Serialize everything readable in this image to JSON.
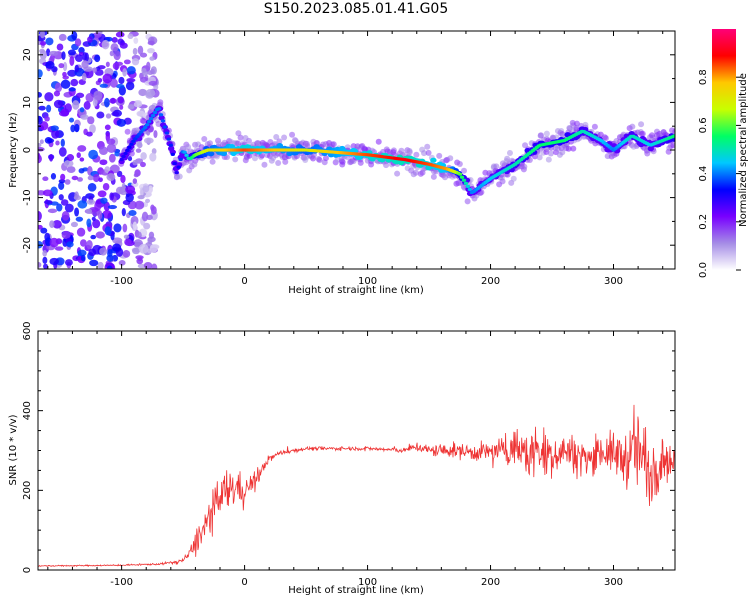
{
  "figure": {
    "title": "S150.2023.085.01.41.G05"
  },
  "chart_data": [
    {
      "type": "heatmap",
      "xlabel": "Height of straight line (km)",
      "ylabel": "Frequency (Hz)",
      "xlim": [
        -168,
        350
      ],
      "ylim": [
        -25,
        25
      ],
      "xticks": [
        -100,
        0,
        100,
        200,
        300
      ],
      "yticks": [
        -20,
        -10,
        0,
        10,
        20
      ],
      "ridge_trace": {
        "description_of_series": "frequency of peak spectral amplitude vs height",
        "x": [
          -100,
          -90,
          -80,
          -70,
          -60,
          -55,
          -50,
          -45,
          -40,
          -30,
          -20,
          0,
          50,
          100,
          130,
          150,
          165,
          175,
          185,
          200,
          220,
          240,
          260,
          275,
          290,
          300,
          315,
          330,
          350
        ],
        "y": [
          -2,
          2,
          5,
          9,
          1,
          -5,
          0,
          -2,
          -1,
          0,
          0,
          0,
          0,
          -1,
          -2,
          -3,
          -4,
          -5,
          -9,
          -6,
          -3,
          1,
          2,
          4,
          2,
          0,
          3,
          1,
          3
        ],
        "amplitude": [
          0.3,
          0.35,
          0.4,
          0.4,
          0.35,
          0.3,
          0.4,
          0.5,
          0.6,
          0.7,
          0.75,
          0.85,
          0.7,
          0.85,
          0.9,
          0.85,
          0.8,
          0.6,
          0.4,
          0.45,
          0.5,
          0.55,
          0.55,
          0.5,
          0.45,
          0.4,
          0.5,
          0.45,
          0.55
        ]
      },
      "noise_region_x": [
        -168,
        -80
      ],
      "colorbar": {
        "label": "Normalized spectral amplitude",
        "range": [
          0,
          1
        ],
        "ticks": [
          "0.0",
          "0.2",
          "0.4",
          "0.6",
          "0.8"
        ],
        "colormap": [
          "#ffffff",
          "#a58ce6",
          "#7800ff",
          "#0000ff",
          "#00c8ff",
          "#00ff64",
          "#c8ff00",
          "#ffc800",
          "#ff0000",
          "#ff0078"
        ]
      }
    },
    {
      "type": "line",
      "xlabel": "Height of straight line (km)",
      "ylabel": "SNR (10 * v/v)",
      "xlim": [
        -168,
        350
      ],
      "ylim": [
        0,
        600
      ],
      "xticks": [
        -100,
        0,
        100,
        200,
        300
      ],
      "yticks": [
        0,
        200,
        400,
        600
      ],
      "series": [
        {
          "color": "#ee3333",
          "x": [
            -168,
            -100,
            -70,
            -55,
            -50,
            -45,
            -40,
            -30,
            -20,
            -10,
            0,
            10,
            20,
            30,
            50,
            80,
            100,
            130,
            140,
            150,
            170,
            190,
            210,
            220,
            230,
            240,
            250,
            260,
            270,
            280,
            290,
            300,
            310,
            320,
            330,
            340,
            350
          ],
          "y": [
            10,
            12,
            15,
            20,
            25,
            40,
            70,
            120,
            180,
            210,
            200,
            230,
            280,
            295,
            305,
            305,
            305,
            300,
            310,
            300,
            300,
            295,
            300,
            310,
            290,
            300,
            290,
            300,
            290,
            280,
            300,
            290,
            280,
            300,
            250,
            290,
            260
          ],
          "noise_amplitude": [
            2,
            2,
            3,
            5,
            8,
            15,
            35,
            60,
            80,
            70,
            40,
            25,
            12,
            8,
            6,
            6,
            6,
            8,
            15,
            20,
            25,
            30,
            40,
            60,
            90,
            80,
            70,
            60,
            60,
            50,
            60,
            70,
            90,
            140,
            120,
            90,
            40
          ]
        }
      ]
    }
  ]
}
